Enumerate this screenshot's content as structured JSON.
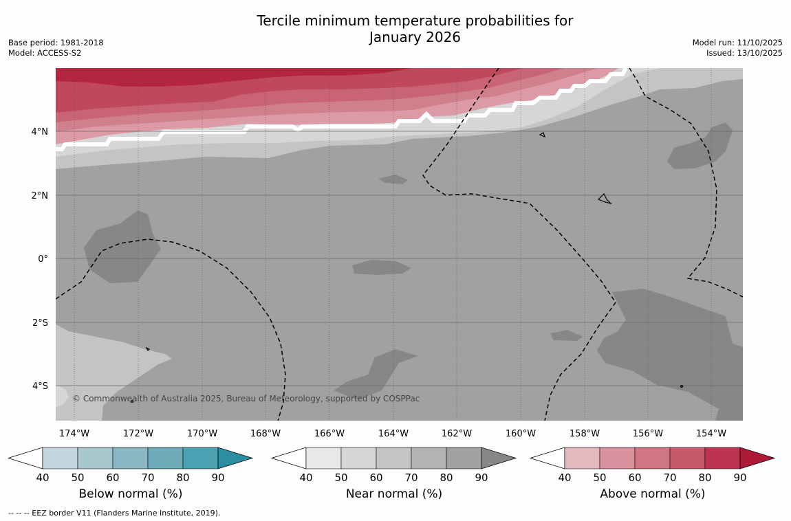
{
  "title": {
    "line1": "Tercile minimum temperature probabilities for",
    "line2": "January 2026"
  },
  "meta_left": {
    "base_period": "Base period: 1981-2018",
    "model": "Model: ACCESS-S2"
  },
  "meta_right": {
    "model_run": "Model run: 11/10/2025",
    "issued": "Issued: 13/10/2025"
  },
  "map": {
    "copyright": "© Commonwealth of Australia 2025, Bureau of Meteorology, supported by COSPPac",
    "lat_labels": [
      "4°N",
      "2°N",
      "0°",
      "2°S",
      "4°S"
    ],
    "lon_labels": [
      "174°W",
      "172°W",
      "170°W",
      "168°W",
      "166°W",
      "164°W",
      "162°W",
      "160°W",
      "158°W",
      "156°W",
      "154°W"
    ],
    "colors": {
      "ocean_base": "#a1a1a1",
      "near_90": "#878787",
      "near_60": "#c4c4c4",
      "near_50": "#d6d6d6",
      "above_50": "#dc9aa4",
      "above_60": "#d0808c",
      "above_70": "#c96474",
      "above_80": "#c0485c",
      "above_90": "#b42640"
    }
  },
  "colorbars": [
    {
      "id": "below",
      "title": "Below normal (%)",
      "ticks": [
        "40",
        "50",
        "60",
        "70",
        "80",
        "90"
      ],
      "colors": [
        "#c1d6dd",
        "#a8c6cd",
        "#8ab7c3",
        "#6dabb9",
        "#4ba0b1",
        "#2b8fa1"
      ]
    },
    {
      "id": "near",
      "title": "Near normal (%)",
      "ticks": [
        "40",
        "50",
        "60",
        "70",
        "80",
        "90"
      ],
      "colors": [
        "#e8e8e8",
        "#d6d6d6",
        "#c4c4c4",
        "#b3b3b3",
        "#a1a1a1",
        "#878787"
      ]
    },
    {
      "id": "above",
      "title": "Above normal (%)",
      "ticks": [
        "40",
        "50",
        "60",
        "70",
        "80",
        "90"
      ],
      "colors": [
        "#e3b9bf",
        "#d9929d",
        "#cf7682",
        "#c65a6b",
        "#bd3450",
        "#ae1a38"
      ]
    }
  ],
  "footer": "-- -- -- EEZ border V11 (Flanders Marine Institute, 2019)."
}
